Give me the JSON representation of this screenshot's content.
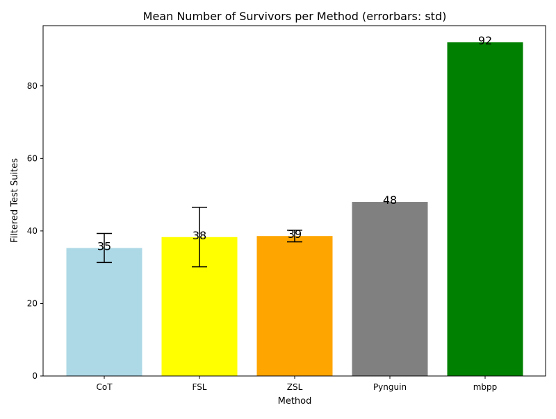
{
  "chart_data": {
    "type": "bar",
    "title": "Mean Number of Survivors per Method (errorbars: std)",
    "xlabel": "Method",
    "ylabel": "Filtered Test Suites",
    "categories": [
      "CoT",
      "FSL",
      "ZSL",
      "Pynguin",
      "mbpp"
    ],
    "values": [
      35.3,
      38.3,
      38.6,
      48,
      92
    ],
    "value_labels": [
      "35",
      "38",
      "39",
      "48",
      "92"
    ],
    "errors": [
      4.0,
      8.2,
      1.6,
      null,
      null
    ],
    "colors": [
      "#add8e6",
      "#ffff00",
      "#ffa500",
      "#808080",
      "#008000"
    ],
    "ylim": [
      0,
      96.6
    ],
    "yticks": [
      0,
      20,
      40,
      60,
      80
    ],
    "ytick_labels": [
      "0",
      "20",
      "40",
      "60",
      "80"
    ],
    "grid": false,
    "legend": "none"
  }
}
